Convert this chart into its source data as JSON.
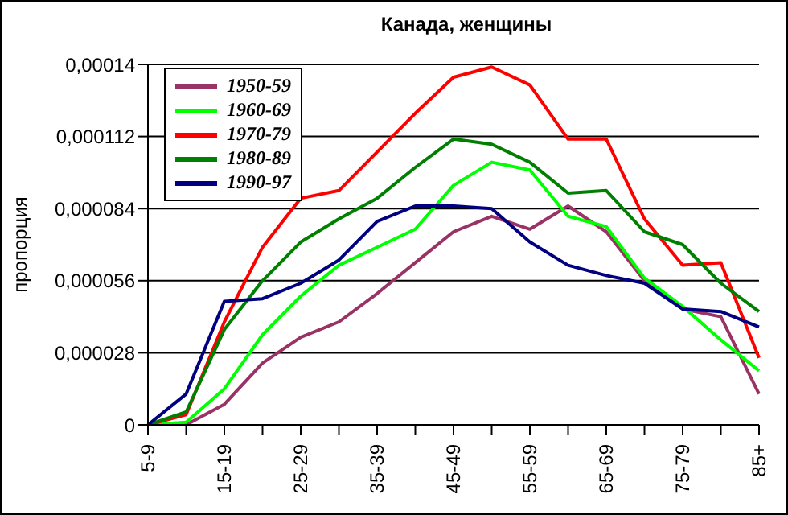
{
  "chart_data": {
    "type": "line",
    "title": "Канада, женщины",
    "ylabel": "пропорция",
    "categories": [
      "5-9",
      null,
      "15-19",
      null,
      "25-29",
      null,
      "35-39",
      null,
      "45-49",
      null,
      "55-59",
      null,
      "65-69",
      null,
      "75-79",
      null,
      "85+"
    ],
    "series": [
      {
        "name": "1950-59",
        "color": "#993366",
        "values": [
          0,
          0,
          8e-06,
          2.4e-05,
          3.4e-05,
          4e-05,
          5.1e-05,
          6.3e-05,
          7.5e-05,
          8.1e-05,
          7.6e-05,
          8.5e-05,
          7.5e-05,
          5.6e-05,
          4.5e-05,
          4.2e-05,
          1.2e-05
        ]
      },
      {
        "name": "1960-69",
        "color": "#00ff00",
        "values": [
          0,
          1e-06,
          1.4e-05,
          3.5e-05,
          5e-05,
          6.2e-05,
          6.9e-05,
          7.6e-05,
          9.3e-05,
          0.000102,
          9.9e-05,
          8.1e-05,
          7.7e-05,
          5.7e-05,
          4.6e-05,
          3.3e-05,
          2.1e-05
        ]
      },
      {
        "name": "1970-79",
        "color": "#ff0000",
        "values": [
          0,
          4e-06,
          4e-05,
          6.9e-05,
          8.8e-05,
          9.1e-05,
          0.000106,
          0.000121,
          0.000135,
          0.000139,
          0.000132,
          0.000111,
          0.000111,
          8e-05,
          6.2e-05,
          6.3e-05,
          2.6e-05
        ]
      },
      {
        "name": "1980-89",
        "color": "#008000",
        "values": [
          0,
          5e-06,
          3.7e-05,
          5.6e-05,
          7.1e-05,
          8e-05,
          8.8e-05,
          0.0001,
          0.000111,
          0.000109,
          0.000102,
          9e-05,
          9.1e-05,
          7.5e-05,
          7e-05,
          5.5e-05,
          4.4e-05
        ]
      },
      {
        "name": "1990-97",
        "color": "#000080",
        "values": [
          0,
          1.2e-05,
          4.8e-05,
          4.9e-05,
          5.5e-05,
          6.4e-05,
          7.9e-05,
          8.5e-05,
          8.5e-05,
          8.4e-05,
          7.1e-05,
          6.2e-05,
          5.8e-05,
          5.5e-05,
          4.5e-05,
          4.4e-05,
          3.8e-05
        ]
      }
    ],
    "ylim": [
      0,
      0.00014
    ],
    "yticks": [
      0,
      {
        "value": 2.8e-05,
        "label": "0,000028"
      },
      {
        "value": 5.6e-05,
        "label": "0,000056"
      },
      {
        "value": 8.4e-05,
        "label": "0,000084"
      },
      {
        "value": 0.000112,
        "label": "0,000112"
      },
      {
        "value": 0.00014,
        "label": "0,00014"
      }
    ],
    "grid": "y",
    "legend": "top left",
    "marker": "none",
    "line_style": "solid"
  }
}
